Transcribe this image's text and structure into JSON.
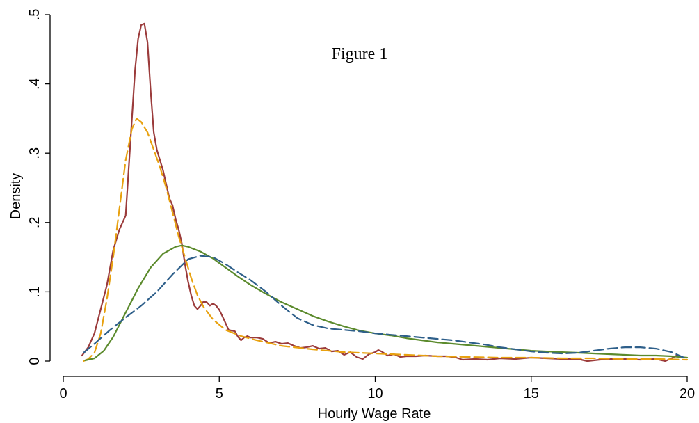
{
  "chart_data": {
    "type": "line",
    "title": "",
    "annotation": "Figure 1",
    "xlabel": "Hourly Wage Rate",
    "ylabel": "Density",
    "xlim": [
      0,
      20
    ],
    "ylim": [
      0,
      0.5
    ],
    "xticks": [
      0,
      5,
      10,
      15,
      20
    ],
    "xtick_labels": [
      "0",
      "5",
      "10",
      "15",
      "20"
    ],
    "yticks": [
      0,
      0.1,
      0.2,
      0.3,
      0.4,
      0.5
    ],
    "ytick_labels": [
      "0",
      ".1",
      ".2",
      ".3",
      ".4",
      ".5"
    ],
    "grid": false,
    "legend": "none",
    "series": [
      {
        "color": "#9b3b3b",
        "style": "solid",
        "points": [
          [
            0.6,
            0.008
          ],
          [
            0.8,
            0.02
          ],
          [
            1.0,
            0.04
          ],
          [
            1.2,
            0.075
          ],
          [
            1.4,
            0.11
          ],
          [
            1.6,
            0.16
          ],
          [
            1.8,
            0.19
          ],
          [
            2.0,
            0.21
          ],
          [
            2.1,
            0.28
          ],
          [
            2.2,
            0.35
          ],
          [
            2.3,
            0.42
          ],
          [
            2.4,
            0.465
          ],
          [
            2.5,
            0.485
          ],
          [
            2.6,
            0.487
          ],
          [
            2.7,
            0.46
          ],
          [
            2.8,
            0.39
          ],
          [
            2.9,
            0.33
          ],
          [
            3.0,
            0.305
          ],
          [
            3.1,
            0.29
          ],
          [
            3.2,
            0.275
          ],
          [
            3.3,
            0.255
          ],
          [
            3.4,
            0.235
          ],
          [
            3.5,
            0.225
          ],
          [
            3.6,
            0.205
          ],
          [
            3.7,
            0.19
          ],
          [
            3.8,
            0.17
          ],
          [
            3.9,
            0.14
          ],
          [
            4.0,
            0.115
          ],
          [
            4.1,
            0.095
          ],
          [
            4.2,
            0.08
          ],
          [
            4.3,
            0.075
          ],
          [
            4.4,
            0.08
          ],
          [
            4.5,
            0.086
          ],
          [
            4.6,
            0.085
          ],
          [
            4.7,
            0.08
          ],
          [
            4.8,
            0.083
          ],
          [
            4.9,
            0.08
          ],
          [
            5.0,
            0.074
          ],
          [
            5.1,
            0.065
          ],
          [
            5.2,
            0.055
          ],
          [
            5.3,
            0.045
          ],
          [
            5.5,
            0.043
          ],
          [
            5.6,
            0.035
          ],
          [
            5.7,
            0.03
          ],
          [
            5.8,
            0.034
          ],
          [
            5.9,
            0.036
          ],
          [
            6.0,
            0.034
          ],
          [
            6.2,
            0.034
          ],
          [
            6.4,
            0.032
          ],
          [
            6.6,
            0.026
          ],
          [
            6.8,
            0.028
          ],
          [
            7.0,
            0.025
          ],
          [
            7.2,
            0.026
          ],
          [
            7.4,
            0.022
          ],
          [
            7.6,
            0.019
          ],
          [
            7.8,
            0.02
          ],
          [
            8.0,
            0.022
          ],
          [
            8.2,
            0.018
          ],
          [
            8.4,
            0.019
          ],
          [
            8.6,
            0.014
          ],
          [
            8.8,
            0.015
          ],
          [
            9.0,
            0.009
          ],
          [
            9.2,
            0.013
          ],
          [
            9.4,
            0.006
          ],
          [
            9.6,
            0.003
          ],
          [
            9.8,
            0.01
          ],
          [
            10.0,
            0.013
          ],
          [
            10.1,
            0.016
          ],
          [
            10.2,
            0.014
          ],
          [
            10.4,
            0.008
          ],
          [
            10.6,
            0.01
          ],
          [
            10.8,
            0.006
          ],
          [
            11.0,
            0.007
          ],
          [
            11.3,
            0.007
          ],
          [
            11.6,
            0.008
          ],
          [
            12.0,
            0.007
          ],
          [
            12.3,
            0.007
          ],
          [
            12.6,
            0.005
          ],
          [
            12.8,
            0.002
          ],
          [
            13.2,
            0.003
          ],
          [
            13.6,
            0.002
          ],
          [
            14.0,
            0.004
          ],
          [
            14.5,
            0.003
          ],
          [
            15.0,
            0.005
          ],
          [
            15.5,
            0.004
          ],
          [
            16.0,
            0.003
          ],
          [
            16.5,
            0.003
          ],
          [
            16.8,
            0.0
          ],
          [
            17.2,
            0.002
          ],
          [
            17.6,
            0.003
          ],
          [
            18.0,
            0.003
          ],
          [
            18.5,
            0.002
          ],
          [
            19.0,
            0.003
          ],
          [
            19.3,
            0.0
          ],
          [
            19.5,
            0.004
          ],
          [
            19.7,
            0.009
          ]
        ]
      },
      {
        "color": "#e8a10f",
        "style": "dashed",
        "points": [
          [
            0.65,
            0.0
          ],
          [
            0.8,
            0.003
          ],
          [
            1.0,
            0.012
          ],
          [
            1.2,
            0.04
          ],
          [
            1.4,
            0.09
          ],
          [
            1.6,
            0.15
          ],
          [
            1.8,
            0.22
          ],
          [
            2.0,
            0.29
          ],
          [
            2.2,
            0.335
          ],
          [
            2.35,
            0.35
          ],
          [
            2.5,
            0.345
          ],
          [
            2.7,
            0.33
          ],
          [
            2.9,
            0.305
          ],
          [
            3.1,
            0.28
          ],
          [
            3.3,
            0.25
          ],
          [
            3.5,
            0.215
          ],
          [
            3.7,
            0.18
          ],
          [
            3.9,
            0.15
          ],
          [
            4.1,
            0.12
          ],
          [
            4.3,
            0.095
          ],
          [
            4.5,
            0.078
          ],
          [
            4.8,
            0.06
          ],
          [
            5.2,
            0.045
          ],
          [
            5.7,
            0.036
          ],
          [
            6.2,
            0.03
          ],
          [
            7.0,
            0.022
          ],
          [
            8.0,
            0.017
          ],
          [
            9.0,
            0.013
          ],
          [
            10.0,
            0.011
          ],
          [
            11.0,
            0.009
          ],
          [
            12.0,
            0.007
          ],
          [
            13.0,
            0.006
          ],
          [
            14.0,
            0.005
          ],
          [
            15.0,
            0.005
          ],
          [
            16.0,
            0.004
          ],
          [
            17.0,
            0.004
          ],
          [
            18.0,
            0.003
          ],
          [
            19.0,
            0.003
          ],
          [
            20.0,
            0.002
          ]
        ]
      },
      {
        "color": "#5b8a2c",
        "style": "solid",
        "points": [
          [
            0.7,
            0.001
          ],
          [
            1.0,
            0.004
          ],
          [
            1.3,
            0.015
          ],
          [
            1.6,
            0.035
          ],
          [
            2.0,
            0.07
          ],
          [
            2.4,
            0.105
          ],
          [
            2.8,
            0.135
          ],
          [
            3.2,
            0.155
          ],
          [
            3.6,
            0.165
          ],
          [
            3.8,
            0.167
          ],
          [
            4.0,
            0.165
          ],
          [
            4.4,
            0.158
          ],
          [
            4.8,
            0.148
          ],
          [
            5.2,
            0.135
          ],
          [
            5.6,
            0.122
          ],
          [
            6.0,
            0.11
          ],
          [
            6.5,
            0.097
          ],
          [
            7.0,
            0.085
          ],
          [
            7.5,
            0.075
          ],
          [
            8.0,
            0.065
          ],
          [
            8.5,
            0.057
          ],
          [
            9.0,
            0.05
          ],
          [
            9.5,
            0.044
          ],
          [
            10.0,
            0.04
          ],
          [
            10.5,
            0.037
          ],
          [
            11.0,
            0.033
          ],
          [
            11.5,
            0.03
          ],
          [
            12.0,
            0.027
          ],
          [
            12.5,
            0.025
          ],
          [
            13.0,
            0.023
          ],
          [
            13.5,
            0.021
          ],
          [
            14.0,
            0.019
          ],
          [
            14.5,
            0.017
          ],
          [
            15.0,
            0.015
          ],
          [
            15.5,
            0.014
          ],
          [
            16.0,
            0.013
          ],
          [
            16.5,
            0.012
          ],
          [
            17.0,
            0.011
          ],
          [
            17.5,
            0.01
          ],
          [
            18.0,
            0.009
          ],
          [
            18.5,
            0.008
          ],
          [
            19.0,
            0.008
          ],
          [
            19.5,
            0.007
          ],
          [
            20.0,
            0.005
          ]
        ]
      },
      {
        "color": "#2e5f8a",
        "style": "dashed",
        "points": [
          [
            0.65,
            0.012
          ],
          [
            1.0,
            0.025
          ],
          [
            1.5,
            0.045
          ],
          [
            2.0,
            0.063
          ],
          [
            2.5,
            0.08
          ],
          [
            3.0,
            0.1
          ],
          [
            3.5,
            0.125
          ],
          [
            4.0,
            0.147
          ],
          [
            4.4,
            0.152
          ],
          [
            4.8,
            0.15
          ],
          [
            5.2,
            0.14
          ],
          [
            5.6,
            0.128
          ],
          [
            6.0,
            0.117
          ],
          [
            6.5,
            0.1
          ],
          [
            7.0,
            0.08
          ],
          [
            7.5,
            0.062
          ],
          [
            8.0,
            0.052
          ],
          [
            8.5,
            0.047
          ],
          [
            9.0,
            0.045
          ],
          [
            9.5,
            0.043
          ],
          [
            10.0,
            0.04
          ],
          [
            10.5,
            0.038
          ],
          [
            11.0,
            0.036
          ],
          [
            11.5,
            0.034
          ],
          [
            12.0,
            0.032
          ],
          [
            12.5,
            0.03
          ],
          [
            13.0,
            0.027
          ],
          [
            13.5,
            0.024
          ],
          [
            14.0,
            0.02
          ],
          [
            14.5,
            0.017
          ],
          [
            15.0,
            0.014
          ],
          [
            15.5,
            0.012
          ],
          [
            16.0,
            0.011
          ],
          [
            16.5,
            0.012
          ],
          [
            17.0,
            0.015
          ],
          [
            17.5,
            0.018
          ],
          [
            18.0,
            0.02
          ],
          [
            18.5,
            0.02
          ],
          [
            19.0,
            0.018
          ],
          [
            19.5,
            0.013
          ],
          [
            19.9,
            0.005
          ]
        ]
      }
    ]
  }
}
